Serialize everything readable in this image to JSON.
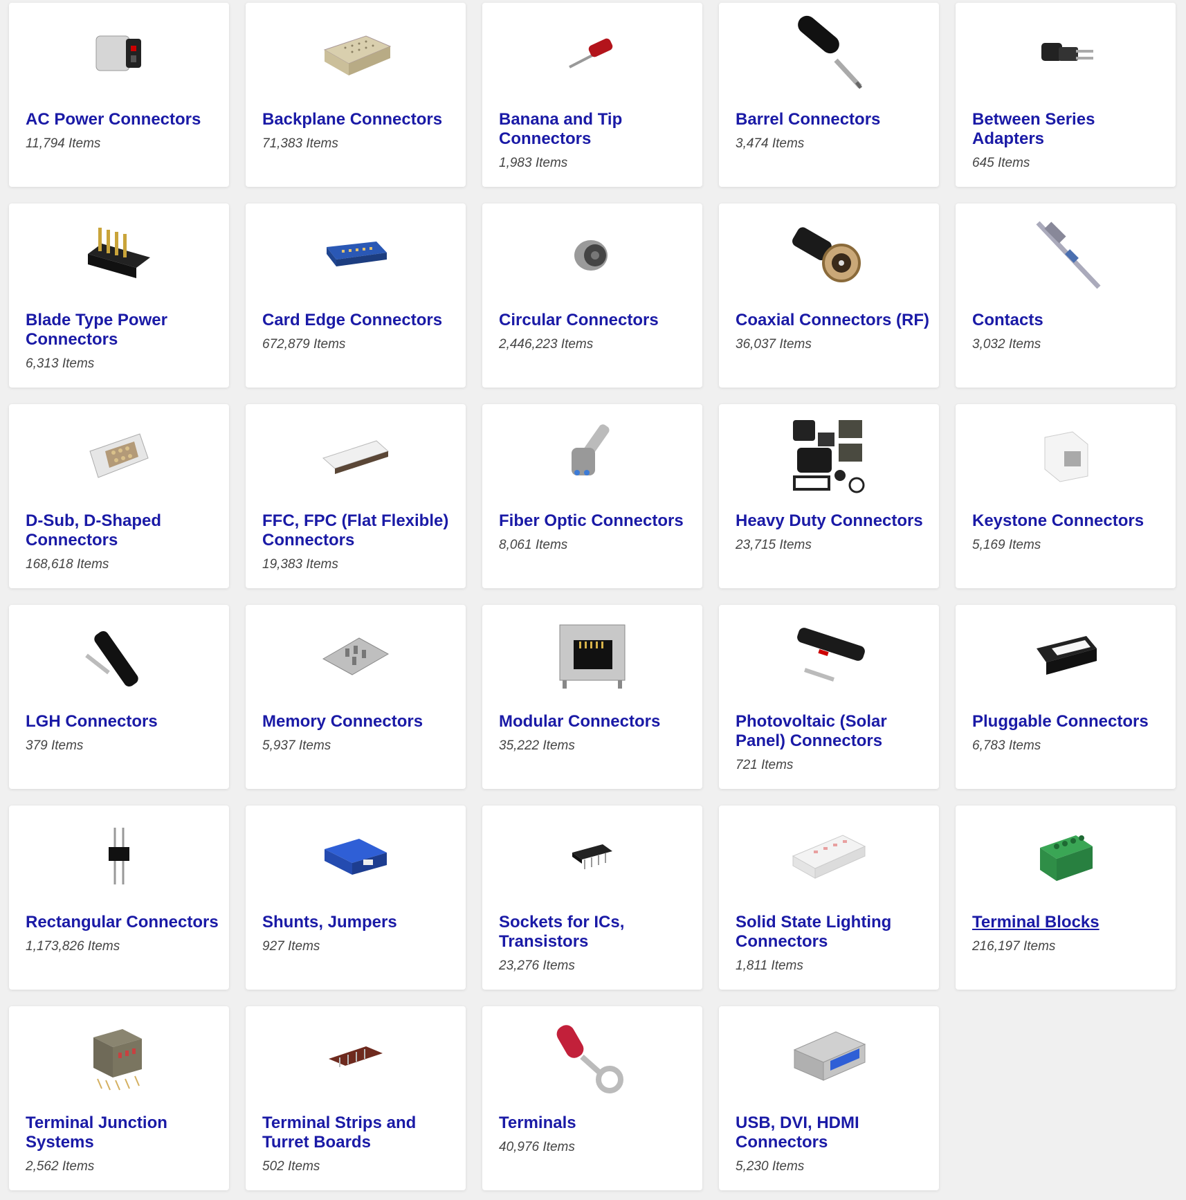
{
  "categories": [
    {
      "title": "AC Power Connectors",
      "count": "11,794 Items",
      "icon": "ac-power-connector-icon"
    },
    {
      "title": "Backplane Connectors",
      "count": "71,383 Items",
      "icon": "backplane-connector-icon"
    },
    {
      "title": "Banana and Tip Connectors",
      "count": "1,983 Items",
      "icon": "banana-plug-icon"
    },
    {
      "title": "Barrel Connectors",
      "count": "3,474 Items",
      "icon": "barrel-plug-icon"
    },
    {
      "title": "Between Series Adapters",
      "count": "645 Items",
      "icon": "series-adapter-icon"
    },
    {
      "title": "Blade Type Power Connectors",
      "count": "6,313 Items",
      "icon": "blade-power-connector-icon"
    },
    {
      "title": "Card Edge Connectors",
      "count": "672,879 Items",
      "icon": "card-edge-connector-icon"
    },
    {
      "title": "Circular Connectors",
      "count": "2,446,223 Items",
      "icon": "circular-connector-icon"
    },
    {
      "title": "Coaxial Connectors (RF)",
      "count": "36,037 Items",
      "icon": "coaxial-connector-icon"
    },
    {
      "title": "Contacts",
      "count": "3,032 Items",
      "icon": "crimp-contact-icon"
    },
    {
      "title": "D-Sub, D-Shaped Connectors",
      "count": "168,618 Items",
      "icon": "dsub-connector-icon"
    },
    {
      "title": "FFC, FPC (Flat Flexible) Connectors",
      "count": "19,383 Items",
      "icon": "ffc-connector-icon"
    },
    {
      "title": "Fiber Optic Connectors",
      "count": "8,061 Items",
      "icon": "fiber-optic-connector-icon"
    },
    {
      "title": "Heavy Duty Connectors",
      "count": "23,715 Items",
      "icon": "heavy-duty-connector-icon"
    },
    {
      "title": "Keystone Connectors",
      "count": "5,169 Items",
      "icon": "keystone-jack-icon"
    },
    {
      "title": "LGH Connectors",
      "count": "379 Items",
      "icon": "lgh-connector-icon"
    },
    {
      "title": "Memory Connectors",
      "count": "5,937 Items",
      "icon": "memory-card-socket-icon"
    },
    {
      "title": "Modular Connectors",
      "count": "35,222 Items",
      "icon": "rj45-jack-icon"
    },
    {
      "title": "Photovoltaic (Solar Panel) Connectors",
      "count": "721 Items",
      "icon": "solar-connector-icon"
    },
    {
      "title": "Pluggable Connectors",
      "count": "6,783 Items",
      "icon": "pluggable-connector-icon"
    },
    {
      "title": "Rectangular Connectors",
      "count": "1,173,826 Items",
      "icon": "pin-header-icon"
    },
    {
      "title": "Shunts, Jumpers",
      "count": "927 Items",
      "icon": "jumper-shunt-icon"
    },
    {
      "title": "Sockets for ICs, Transistors",
      "count": "23,276 Items",
      "icon": "ic-socket-icon"
    },
    {
      "title": "Solid State Lighting Connectors",
      "count": "1,811 Items",
      "icon": "led-strip-connector-icon"
    },
    {
      "title": "Terminal Blocks",
      "count": "216,197 Items",
      "icon": "terminal-block-icon"
    },
    {
      "title": "Terminal Junction Systems",
      "count": "2,562 Items",
      "icon": "terminal-junction-icon"
    },
    {
      "title": "Terminal Strips and Turret Boards",
      "count": "502 Items",
      "icon": "terminal-strip-icon"
    },
    {
      "title": "Terminals",
      "count": "40,976 Items",
      "icon": "ring-terminal-icon"
    },
    {
      "title": "USB, DVI, HDMI Connectors",
      "count": "5,230 Items",
      "icon": "usb-connector-icon"
    }
  ],
  "hovered_index": 24,
  "colors": {
    "link": "#1a1aa6",
    "count": "#444444",
    "card_bg": "#ffffff",
    "page_bg": "#f0f0f0"
  }
}
